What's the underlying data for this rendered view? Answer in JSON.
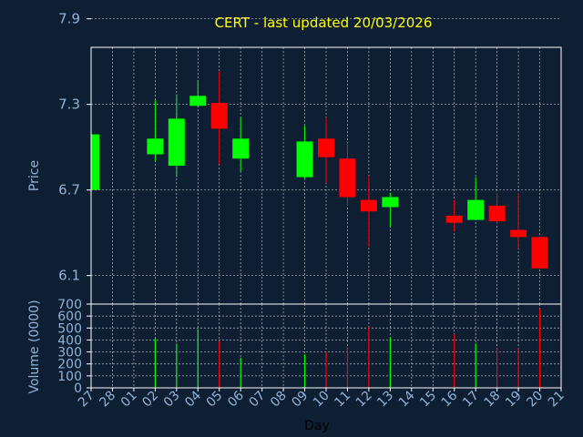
{
  "title": "CERT - last updated 20/03/2026",
  "colors": {
    "background": "#0f1f33",
    "title": "#ffff00",
    "axis_text": "#8fb2d9",
    "frame": "#ffffff",
    "grid": "#ffffff",
    "up": "#00ff00",
    "down": "#ff0000"
  },
  "chart_data": [
    {
      "type": "candlestick",
      "ylabel": "Price",
      "ylim": [
        5.9,
        7.7
      ],
      "yticks": [
        "6.1",
        "6.7",
        "7.3",
        "7.9"
      ],
      "grid": true,
      "x": [
        "27",
        "28",
        "01",
        "02",
        "03",
        "04",
        "05",
        "06",
        "07",
        "08",
        "09",
        "10",
        "11",
        "12",
        "13",
        "14",
        "15",
        "16",
        "17",
        "18",
        "19",
        "20",
        "21"
      ],
      "candles": [
        {
          "day": "27",
          "open": 6.7,
          "close": 7.09,
          "high": 7.09,
          "low": 6.7
        },
        {
          "day": "02",
          "open": 6.95,
          "close": 7.06,
          "high": 7.33,
          "low": 6.9
        },
        {
          "day": "03",
          "open": 6.87,
          "close": 7.2,
          "high": 7.37,
          "low": 6.79
        },
        {
          "day": "04",
          "open": 7.29,
          "close": 7.36,
          "high": 7.47,
          "low": 7.28
        },
        {
          "day": "05",
          "open": 7.31,
          "close": 7.13,
          "high": 7.53,
          "low": 6.88
        },
        {
          "day": "06",
          "open": 6.92,
          "close": 7.06,
          "high": 7.21,
          "low": 6.83
        },
        {
          "day": "09",
          "open": 6.79,
          "close": 7.04,
          "high": 7.15,
          "low": 6.78
        },
        {
          "day": "10",
          "open": 7.06,
          "close": 6.93,
          "high": 7.21,
          "low": 6.75
        },
        {
          "day": "11",
          "open": 6.92,
          "close": 6.65,
          "high": 7.03,
          "low": 6.59
        },
        {
          "day": "12",
          "open": 6.63,
          "close": 6.55,
          "high": 6.8,
          "low": 6.3
        },
        {
          "day": "13",
          "open": 6.58,
          "close": 6.65,
          "high": 6.68,
          "low": 6.44
        },
        {
          "day": "16",
          "open": 6.52,
          "close": 6.47,
          "high": 6.63,
          "low": 6.41
        },
        {
          "day": "17",
          "open": 6.49,
          "close": 6.63,
          "high": 6.79,
          "low": 6.49
        },
        {
          "day": "18",
          "open": 6.59,
          "close": 6.48,
          "high": 6.68,
          "low": 6.46
        },
        {
          "day": "19",
          "open": 6.42,
          "close": 6.37,
          "high": 6.68,
          "low": 6.29
        },
        {
          "day": "20",
          "open": 6.37,
          "close": 6.15,
          "high": 6.37,
          "low": 6.15
        }
      ]
    },
    {
      "type": "bar",
      "ylabel": "Volume (0000)",
      "xlabel": "Day",
      "ylim": [
        0,
        700
      ],
      "yticks": [
        "0",
        "100",
        "200",
        "300",
        "400",
        "500",
        "600",
        "700"
      ],
      "grid": true,
      "bars": [
        {
          "day": "02",
          "value": 410,
          "color": "up"
        },
        {
          "day": "03",
          "value": 370,
          "color": "up"
        },
        {
          "day": "04",
          "value": 490,
          "color": "up"
        },
        {
          "day": "05",
          "value": 390,
          "color": "down"
        },
        {
          "day": "06",
          "value": 250,
          "color": "up"
        },
        {
          "day": "09",
          "value": 280,
          "color": "up"
        },
        {
          "day": "10",
          "value": 300,
          "color": "down"
        },
        {
          "day": "11",
          "value": 340,
          "color": "down"
        },
        {
          "day": "12",
          "value": 510,
          "color": "down"
        },
        {
          "day": "13",
          "value": 420,
          "color": "up"
        },
        {
          "day": "16",
          "value": 450,
          "color": "down"
        },
        {
          "day": "17",
          "value": 370,
          "color": "up"
        },
        {
          "day": "18",
          "value": 330,
          "color": "down"
        },
        {
          "day": "19",
          "value": 330,
          "color": "down"
        },
        {
          "day": "20",
          "value": 660,
          "color": "down"
        }
      ]
    }
  ]
}
